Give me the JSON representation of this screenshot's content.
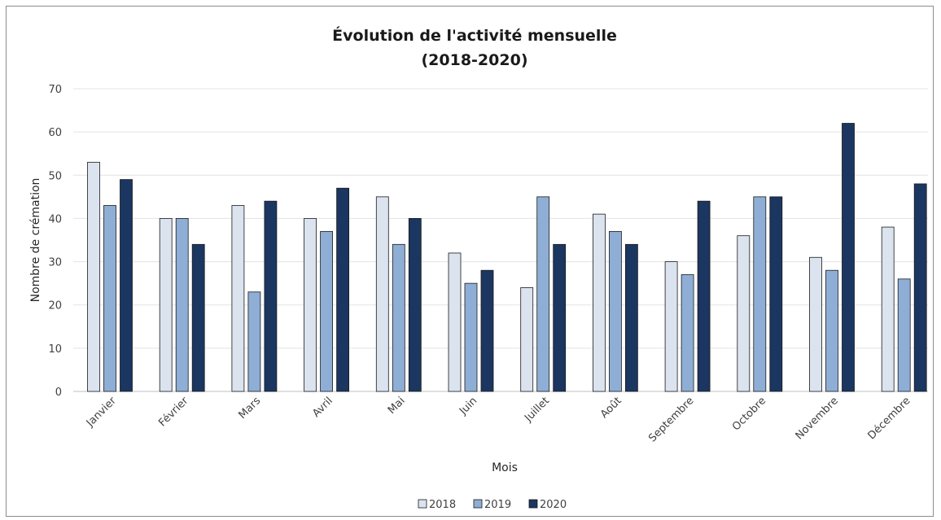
{
  "chart_data": {
    "type": "bar",
    "title": "Évolution de l'activité mensuelle",
    "subtitle": "(2018-2020)",
    "xlabel": "Mois",
    "ylabel": "Nombre de crémation",
    "ylim": [
      0,
      70
    ],
    "yticks": [
      0,
      10,
      20,
      30,
      40,
      50,
      60,
      70
    ],
    "grid": true,
    "legend_position": "bottom",
    "categories": [
      "Janvier",
      "Février",
      "Mars",
      "Avril",
      "Mai",
      "Juin",
      "Juillet",
      "Août",
      "Septembre",
      "Octobre",
      "Novembre",
      "Décembre"
    ],
    "series": [
      {
        "name": "2018",
        "color": "#dbe3ef",
        "values": [
          53,
          40,
          43,
          40,
          45,
          32,
          24,
          41,
          30,
          36,
          31,
          38
        ]
      },
      {
        "name": "2019",
        "color": "#8faed5",
        "values": [
          43,
          40,
          23,
          37,
          34,
          25,
          45,
          37,
          27,
          45,
          28,
          26
        ]
      },
      {
        "name": "2020",
        "color": "#1b3660",
        "values": [
          49,
          34,
          44,
          47,
          40,
          28,
          34,
          34,
          44,
          45,
          62,
          48
        ]
      }
    ]
  }
}
